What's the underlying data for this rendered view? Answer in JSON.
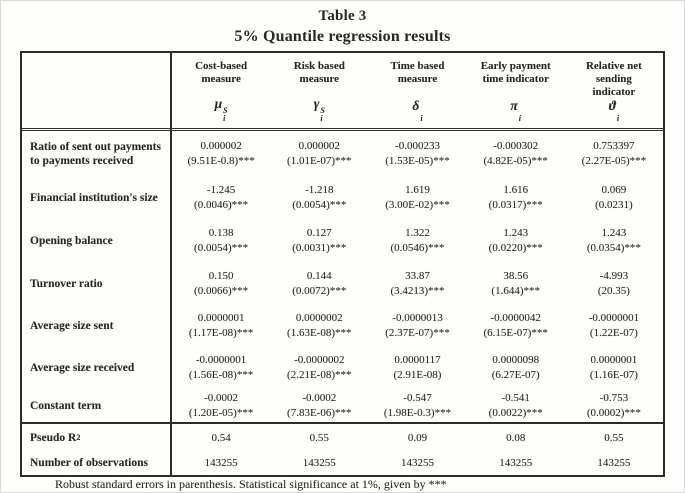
{
  "page": {
    "title": "Table 3",
    "subtitle": "5% Quantile regression results",
    "footnote": "Robust standard errors in parenthesis. Statistical significance at 1%, given by ***"
  },
  "table": {
    "columns": [
      {
        "label_lines": [
          "Cost-based",
          "measure"
        ],
        "symbol": {
          "base": "μ",
          "sup": "S",
          "sub": "i"
        }
      },
      {
        "label_lines": [
          "Risk based",
          "measure"
        ],
        "symbol": {
          "base": "γ",
          "sup": "S",
          "sub": "i"
        }
      },
      {
        "label_lines": [
          "Time based",
          "measure"
        ],
        "symbol": {
          "base": "δ",
          "sup": "",
          "sub": "i"
        }
      },
      {
        "label_lines": [
          "Early payment",
          "time indicator"
        ],
        "symbol": {
          "base": "π",
          "sup": "",
          "sub": "i"
        }
      },
      {
        "label_lines": [
          "Relative net",
          "sending",
          "indicator"
        ],
        "symbol": {
          "base": "ϑ",
          "sup": "",
          "sub": "i"
        }
      }
    ],
    "rows": [
      {
        "label": "Ratio of sent out payments to payments received",
        "cells": [
          {
            "coef": "0.000002",
            "se": "(9.51E-0.8)***"
          },
          {
            "coef": "0.000002",
            "se": "(1.01E-07)***"
          },
          {
            "coef": "-0.000233",
            "se": "(1.53E-05)***"
          },
          {
            "coef": "-0.000302",
            "se": "(4.82E-05)***"
          },
          {
            "coef": "0.753397",
            "se": "(2.27E-05)***"
          }
        ]
      },
      {
        "label": "Financial institution's size",
        "cells": [
          {
            "coef": "-1.245",
            "se": "(0.0046)***"
          },
          {
            "coef": "-1.218",
            "se": "(0.0054)***"
          },
          {
            "coef": "1.619",
            "se": "(3.00E-02)***"
          },
          {
            "coef": "1.616",
            "se": "(0.0317)***"
          },
          {
            "coef": "0.069",
            "se": "(0.0231)"
          }
        ]
      },
      {
        "label": "Opening balance",
        "cells": [
          {
            "coef": "0.138",
            "se": "(0.0054)***"
          },
          {
            "coef": "0.127",
            "se": "(0.0031)***"
          },
          {
            "coef": "1.322",
            "se": "(0.0546)***"
          },
          {
            "coef": "1.243",
            "se": "(0.0220)***"
          },
          {
            "coef": "1.243",
            "se": "(0.0354)***"
          }
        ]
      },
      {
        "label": "Turnover ratio",
        "cells": [
          {
            "coef": "0.150",
            "se": "(0.0066)***"
          },
          {
            "coef": "0.144",
            "se": "(0.0072)***"
          },
          {
            "coef": "33.87",
            "se": "(3.4213)***"
          },
          {
            "coef": "38.56",
            "se": "(1.644)***"
          },
          {
            "coef": "-4.993",
            "se": "(20.35)"
          }
        ]
      },
      {
        "label": "Average size sent",
        "cells": [
          {
            "coef": "0.0000001",
            "se": "(1.17E-08)***"
          },
          {
            "coef": "0.0000002",
            "se": "(1.63E-08)***"
          },
          {
            "coef": "-0.0000013",
            "se": "(2.37E-07)***"
          },
          {
            "coef": "-0.0000042",
            "se": "(6.15E-07)***"
          },
          {
            "coef": "-0.0000001",
            "se": "(1.22E-07)"
          }
        ]
      },
      {
        "label": "Average size received",
        "cells": [
          {
            "coef": "-0.0000001",
            "se": "(1.56E-08)***"
          },
          {
            "coef": "-0.0000002",
            "se": "(2.21E-08)***"
          },
          {
            "coef": "0.0000117",
            "se": "(2.91E-08)"
          },
          {
            "coef": "0.0000098",
            "se": "(6.27E-07)"
          },
          {
            "coef": "0.0000001",
            "se": "(1.16E-07)"
          }
        ]
      },
      {
        "label": "Constant term",
        "cells": [
          {
            "coef": "-0.0002",
            "se": "(1.20E-05)***"
          },
          {
            "coef": "-0.0002",
            "se": "(7.83E-06)***"
          },
          {
            "coef": "-0.547",
            "se": "(1.98E-0.3)***"
          },
          {
            "coef": "-0.541",
            "se": "(0.0022)***"
          },
          {
            "coef": "-0.753",
            "se": "(0.0002)***"
          }
        ]
      }
    ],
    "summary_rows": [
      {
        "label": "Pseudo R",
        "label_sup": "2",
        "values": [
          "0.54",
          "0.55",
          "0.09",
          "0.08",
          "0.55"
        ]
      },
      {
        "label": "Number of observations",
        "label_sup": "",
        "values": [
          "143255",
          "143255",
          "143255",
          "143255",
          "143255"
        ]
      }
    ]
  },
  "colors": {
    "text": "#2a2823",
    "line": "#2e2c28",
    "background": "#fdfdfc"
  }
}
